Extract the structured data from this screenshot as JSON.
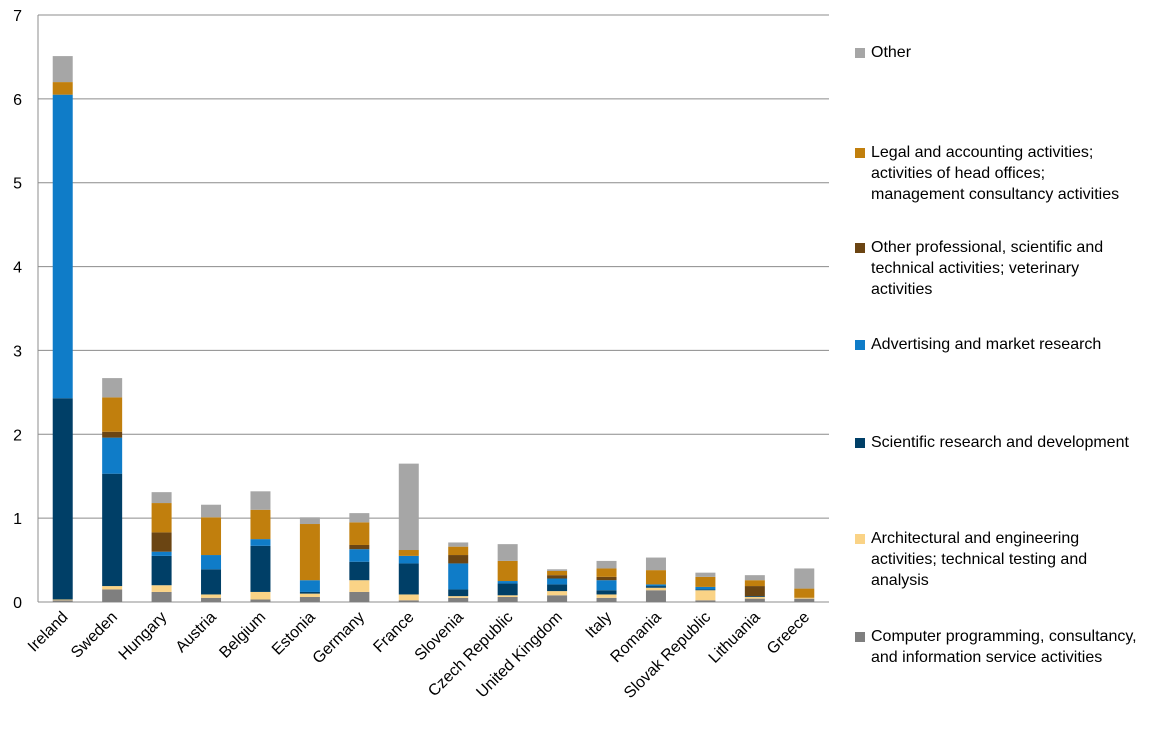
{
  "chart_data": {
    "type": "bar",
    "stacked": true,
    "ylim": [
      0,
      7
    ],
    "yticks": [
      "0",
      "1",
      "2",
      "3",
      "4",
      "5",
      "6",
      "7"
    ],
    "grid": true,
    "legend_position": "right",
    "categories": [
      "Ireland",
      "Sweden",
      "Hungary",
      "Austria",
      "Belgium",
      "Estonia",
      "Germany",
      "France",
      "Slovenia",
      "Czech Republic",
      "United Kingdom",
      "Italy",
      "Romania",
      "Slovak Republic",
      "Lithuania",
      "Greece"
    ],
    "series": [
      {
        "name": "Computer programming, consultancy, and information service activities",
        "color": "#7f7f7f",
        "values": [
          0.02,
          0.15,
          0.12,
          0.05,
          0.03,
          0.06,
          0.12,
          0.02,
          0.05,
          0.06,
          0.08,
          0.05,
          0.14,
          0.02,
          0.04,
          0.04
        ]
      },
      {
        "name": "Architectural and engineering activities; technical testing and analysis",
        "color": "#fad386",
        "values": [
          0.01,
          0.04,
          0.08,
          0.04,
          0.09,
          0.04,
          0.14,
          0.07,
          0.02,
          0.02,
          0.05,
          0.04,
          0.03,
          0.12,
          0.02,
          0.01
        ]
      },
      {
        "name": "Scientific research and development",
        "color": "#003f67",
        "values": [
          2.4,
          1.34,
          0.35,
          0.3,
          0.55,
          0.02,
          0.22,
          0.37,
          0.08,
          0.14,
          0.08,
          0.05,
          0.02,
          0.01,
          0.01,
          0.0
        ]
      },
      {
        "name": "Advertising and market research",
        "color": "#0f7cc8",
        "values": [
          3.62,
          0.43,
          0.05,
          0.17,
          0.08,
          0.14,
          0.15,
          0.09,
          0.31,
          0.03,
          0.07,
          0.12,
          0.02,
          0.03,
          0.0,
          0.0
        ]
      },
      {
        "name": "Other professional, scientific and technical activities; veterinary activities",
        "color": "#6b4513",
        "values": [
          0.0,
          0.07,
          0.23,
          0.0,
          0.0,
          0.0,
          0.05,
          0.0,
          0.1,
          0.0,
          0.04,
          0.04,
          0.0,
          0.0,
          0.12,
          0.0
        ]
      },
      {
        "name": "Legal and accounting activities; activities of head offices; management consultancy activities",
        "color": "#c17f0d",
        "values": [
          0.15,
          0.41,
          0.35,
          0.45,
          0.35,
          0.67,
          0.27,
          0.07,
          0.1,
          0.24,
          0.05,
          0.1,
          0.17,
          0.12,
          0.07,
          0.11
        ]
      },
      {
        "name": "Other",
        "color": "#a6a6a6",
        "values": [
          0.31,
          0.23,
          0.13,
          0.15,
          0.22,
          0.08,
          0.11,
          1.03,
          0.05,
          0.2,
          0.02,
          0.09,
          0.15,
          0.05,
          0.06,
          0.24
        ]
      }
    ]
  }
}
